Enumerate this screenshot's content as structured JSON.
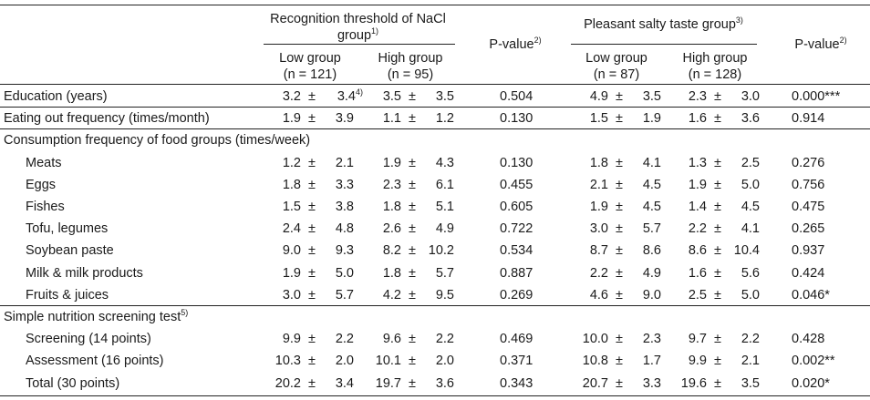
{
  "header": {
    "group1_line1": "Recognition threshold of NaCl",
    "group1_line2": "group",
    "group1_sup": "1)",
    "group2": "Pleasant salty taste group",
    "group2_sup": "3)",
    "pvalue": "P-value",
    "pvalue_sup": "2)",
    "g1_low": "Low group",
    "g1_low_n": "(n = 121)",
    "g1_high": "High group",
    "g1_high_n": "(n = 95)",
    "g2_low": "Low group",
    "g2_low_n": "(n = 87)",
    "g2_high": "High group",
    "g2_high_n": "(n = 128)"
  },
  "rows": [
    {
      "label": "Education (years)",
      "m1": "3.2",
      "s1": "3.4",
      "sup1": "4)",
      "m2": "3.5",
      "s2": "3.5",
      "p1": "0.504",
      "m3": "4.9",
      "s3": "3.5",
      "m4": "2.3",
      "s4": "3.0",
      "p2": "0.000***"
    },
    {
      "label": "Eating out frequency (times/month)",
      "m1": "1.9",
      "s1": "3.9",
      "m2": "1.1",
      "s2": "1.2",
      "p1": "0.130",
      "m3": "1.5",
      "s3": "1.9",
      "m4": "1.6",
      "s4": "3.6",
      "p2": "0.914"
    },
    {
      "label": "Consumption frequency of food groups (times/week)",
      "section": true
    },
    {
      "label": "Meats",
      "indent": true,
      "m1": "1.2",
      "s1": "2.1",
      "m2": "1.9",
      "s2": "4.3",
      "p1": "0.130",
      "m3": "1.8",
      "s3": "4.1",
      "m4": "1.3",
      "s4": "2.5",
      "p2": "0.276"
    },
    {
      "label": "Eggs",
      "indent": true,
      "m1": "1.8",
      "s1": "3.3",
      "m2": "2.3",
      "s2": "6.1",
      "p1": "0.455",
      "m3": "2.1",
      "s3": "4.5",
      "m4": "1.9",
      "s4": "5.0",
      "p2": "0.756"
    },
    {
      "label": "Fishes",
      "indent": true,
      "m1": "1.5",
      "s1": "3.8",
      "m2": "1.8",
      "s2": "5.1",
      "p1": "0.605",
      "m3": "1.9",
      "s3": "4.5",
      "m4": "1.4",
      "s4": "4.5",
      "p2": "0.475"
    },
    {
      "label": "Tofu, legumes",
      "indent": true,
      "m1": "2.4",
      "s1": "4.8",
      "m2": "2.6",
      "s2": "4.9",
      "p1": "0.722",
      "m3": "3.0",
      "s3": "5.7",
      "m4": "2.2",
      "s4": "4.1",
      "p2": "0.265"
    },
    {
      "label": "Soybean paste",
      "indent": true,
      "m1": "9.0",
      "s1": "9.3",
      "m2": "8.2",
      "s2": "10.2",
      "p1": "0.534",
      "m3": "8.7",
      "s3": "8.6",
      "m4": "8.6",
      "s4": "10.4",
      "p2": "0.937"
    },
    {
      "label": "Milk & milk products",
      "indent": true,
      "m1": "1.9",
      "s1": "5.0",
      "m2": "1.8",
      "s2": "5.7",
      "p1": "0.887",
      "m3": "2.2",
      "s3": "4.9",
      "m4": "1.6",
      "s4": "5.6",
      "p2": "0.424"
    },
    {
      "label": "Fruits & juices",
      "indent": true,
      "m1": "3.0",
      "s1": "5.7",
      "m2": "4.2",
      "s2": "9.5",
      "p1": "0.269",
      "m3": "4.6",
      "s3": "9.0",
      "m4": "2.5",
      "s4": "5.0",
      "p2": "0.046*"
    },
    {
      "label": "Simple nutrition screening test",
      "labelsup": "5)",
      "section": true
    },
    {
      "label": "Screening (14 points)",
      "indent": true,
      "m1": "9.9",
      "s1": "2.2",
      "m2": "9.6",
      "s2": "2.2",
      "p1": "0.469",
      "m3": "10.0",
      "s3": "2.3",
      "m4": "9.7",
      "s4": "2.2",
      "p2": "0.428"
    },
    {
      "label": "Assessment (16 points)",
      "indent": true,
      "m1": "10.3",
      "s1": "2.0",
      "m2": "10.1",
      "s2": "2.0",
      "p1": "0.371",
      "m3": "10.8",
      "s3": "1.7",
      "m4": "9.9",
      "s4": "2.1",
      "p2": "0.002**"
    },
    {
      "label": "Total (30 points)",
      "indent": true,
      "m1": "20.2",
      "s1": "3.4",
      "m2": "19.7",
      "s2": "3.6",
      "p1": "0.343",
      "m3": "20.7",
      "s3": "3.3",
      "m4": "19.6",
      "s4": "3.5",
      "p2": "0.020*"
    }
  ],
  "pm_symbol": "±"
}
